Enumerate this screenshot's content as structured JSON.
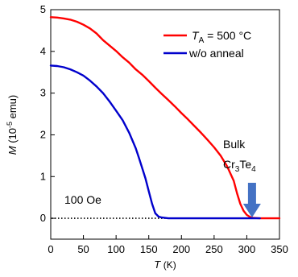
{
  "chart_data": {
    "type": "line",
    "xlabel": {
      "symbol": "T",
      "unit": "(K)"
    },
    "ylabel": {
      "symbol": "M",
      "unit_prefix": "(10",
      "unit_exp": "-5",
      "unit_suffix": " emu)"
    },
    "xlim": [
      0,
      350
    ],
    "ylim": [
      -0.5,
      5
    ],
    "xticks": [
      "0",
      "50",
      "100",
      "150",
      "200",
      "250",
      "300",
      "350"
    ],
    "yticks": [
      "0",
      "1",
      "2",
      "3",
      "4",
      "5"
    ],
    "legend_position": "top-right",
    "grid": false,
    "series": [
      {
        "legend_main": "T",
        "legend_sub": "A",
        "legend_rest": " = 500 °C",
        "color": "#ff0000",
        "x": [
          0,
          10,
          20,
          30,
          40,
          50,
          60,
          70,
          80,
          90,
          100,
          110,
          120,
          130,
          140,
          150,
          160,
          170,
          180,
          190,
          200,
          210,
          220,
          230,
          240,
          250,
          260,
          270,
          280,
          285,
          290,
          295,
          300,
          305,
          310,
          320,
          330,
          340,
          350
        ],
        "y": [
          4.82,
          4.81,
          4.79,
          4.76,
          4.71,
          4.64,
          4.55,
          4.43,
          4.27,
          4.14,
          4.01,
          3.86,
          3.73,
          3.57,
          3.44,
          3.29,
          3.13,
          2.98,
          2.83,
          2.68,
          2.52,
          2.37,
          2.21,
          2.05,
          1.88,
          1.7,
          1.5,
          1.24,
          0.9,
          0.6,
          0.35,
          0.18,
          0.08,
          0.03,
          0.01,
          0.0,
          0.0,
          0.0,
          0.0
        ]
      },
      {
        "legend_main": "w/o anneal",
        "legend_sub": "",
        "legend_rest": "",
        "color": "#0000cc",
        "x": [
          0,
          10,
          20,
          30,
          40,
          50,
          60,
          70,
          80,
          90,
          100,
          110,
          120,
          130,
          135,
          140,
          145,
          150,
          155,
          160,
          165,
          170,
          175,
          180,
          200,
          250,
          300,
          320
        ],
        "y": [
          3.66,
          3.65,
          3.62,
          3.57,
          3.5,
          3.42,
          3.3,
          3.16,
          3.0,
          2.8,
          2.58,
          2.35,
          2.05,
          1.68,
          1.45,
          1.2,
          0.95,
          0.65,
          0.35,
          0.12,
          0.04,
          0.02,
          0.01,
          0.0,
          0.0,
          0.0,
          0.0,
          0.0
        ]
      }
    ],
    "baseline": {
      "label": "100 Oe",
      "y": 0,
      "style": "dotted"
    },
    "annotation": {
      "line1": "Bulk",
      "line2_main": "Cr",
      "line2_sub1": "3",
      "line2_mid": "Te",
      "line2_sub2": "4",
      "arrow_x": 308,
      "color": "#4472c4"
    }
  }
}
